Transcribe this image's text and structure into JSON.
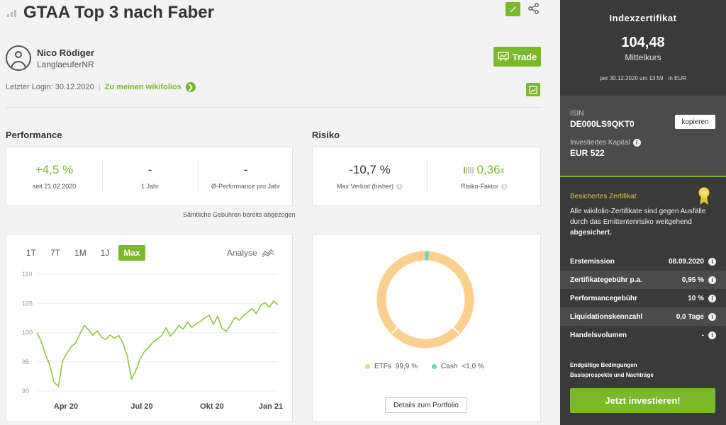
{
  "header": {
    "title": "GTAA Top 3 nach Faber"
  },
  "user": {
    "name": "Nico Rödiger",
    "handle": "LanglaeuferNR",
    "trade_label": "Trade"
  },
  "login": {
    "text": "Letzter Login: 30.12.2020",
    "link_label": "Zu meinen wikifolios"
  },
  "performance": {
    "title": "Performance",
    "stats": [
      {
        "value": "+4,5 %",
        "label": "seit 21.02.2020"
      },
      {
        "value": "-",
        "label": "1 Jahr"
      },
      {
        "value": "-",
        "label": "Ø-Performance pro Jahr"
      }
    ],
    "fees_note": "Sämtliche Gebühren bereits abgezogen"
  },
  "risk": {
    "title": "Risiko",
    "max_loss": {
      "value": "-10,7 %",
      "label": "Max Verlust (bisher)"
    },
    "risk_factor": {
      "value": "0,36",
      "unit": "x",
      "label": "Risiko-Faktor"
    }
  },
  "range_tabs": [
    "1T",
    "7T",
    "1M",
    "1J",
    "Max"
  ],
  "active_range": "Max",
  "analyse_label": "Analyse",
  "chart_data": [
    {
      "type": "line",
      "x_tick_labels": [
        "Apr 20",
        "Jul 20",
        "Okt 20",
        "Jan 21"
      ],
      "y_tick_labels": [
        "110",
        "105",
        "100",
        "95",
        "90"
      ],
      "ylim": [
        90,
        110
      ],
      "line_color": "#8dc63f",
      "values": [
        100,
        98.5,
        96.2,
        94.5,
        91.5,
        90.8,
        95.2,
        96.5,
        97.6,
        98.2,
        99.8,
        101.2,
        100.5,
        99.5,
        100.3,
        99.2,
        98.8,
        99.6,
        99.0,
        99.5,
        98.2,
        96.0,
        92.0,
        93.5,
        95.5,
        96.8,
        97.5,
        98.4,
        98.9,
        99.5,
        100.8,
        99.4,
        100.2,
        101.2,
        100.6,
        101.8,
        100.9,
        101.5,
        101.9,
        102.5,
        103.0,
        101.4,
        102.8,
        100.7,
        100.2,
        101.3,
        102.6,
        102.1,
        102.9,
        103.5,
        104.1,
        103.2,
        104.7,
        105.1,
        104.3,
        105.4,
        104.8
      ]
    },
    {
      "type": "pie",
      "labels": [
        "ETFs",
        "Cash"
      ],
      "values": [
        99.9,
        0.1
      ],
      "colors": [
        "#fdd08f",
        "#6fd1c6"
      ]
    }
  ],
  "legend": [
    {
      "name": "ETFs",
      "value": "99,9 %",
      "color": "#fdd08f"
    },
    {
      "name": "Cash",
      "value": "<1,0 %",
      "color": "#6fd1c6"
    }
  ],
  "details_button": "Details zum Portfolio",
  "sidebar": {
    "title": "Indexzertifikat",
    "price": "104,48",
    "price_label": "Mittelkurs",
    "date": "per 30.12.2020 um 13:59 · in EUR",
    "isin_label": "ISIN",
    "isin": "DE000LS9QKT0",
    "copy_label": "kopieren",
    "capital_label": "Investiertes Kapital",
    "capital": "EUR 522",
    "secure_title": "Besichertes Zertifikat",
    "secure_text": "Alle wikifolio-Zertifikate sind gegen Ausfälle durch das Emittentenrisiko weitgehend",
    "secure_text_bold": "abgesichert.",
    "facts": [
      {
        "label": "Erstemission",
        "value": "08.09.2020"
      },
      {
        "label": "Zertifikategebühr p.a.",
        "value": "0,95 %"
      },
      {
        "label": "Performancegebühr",
        "value": "10 %"
      },
      {
        "label": "Liquidationskennzahl",
        "value": "0,0 Tage"
      },
      {
        "label": "Handelsvolumen",
        "value": "-"
      }
    ],
    "link1": "Endgültige Bedingungen",
    "link2": "Basisprospekte und Nachträge",
    "invest_label": "Jetzt investieren!"
  }
}
